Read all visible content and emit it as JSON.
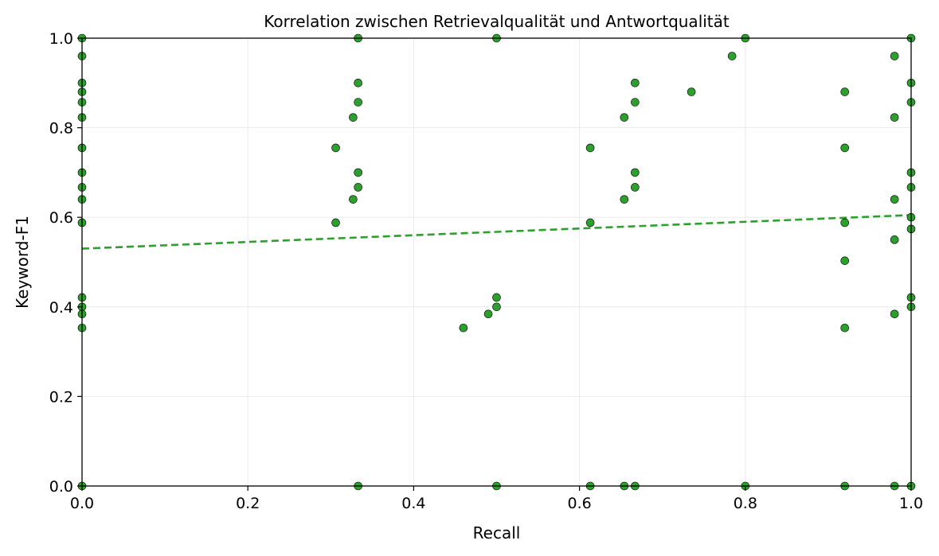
{
  "chart_data": {
    "type": "scatter",
    "title": "Korrelation zwischen Retrievalqualität und Antwortqualität",
    "xlabel": "Recall",
    "ylabel": "Keyword-F1",
    "xlim": [
      0,
      1
    ],
    "ylim": [
      0,
      1
    ],
    "x_ticks": [
      "0.0",
      "0.2",
      "0.4",
      "0.6",
      "0.8",
      "1.0"
    ],
    "y_ticks": [
      "0.0",
      "0.2",
      "0.4",
      "0.6",
      "0.8",
      "1.0"
    ],
    "grid": true,
    "colors": {
      "points": "#2ca02c",
      "point_edge": "#000000",
      "trend": "#2ca02c",
      "grid": "#e6e6e6"
    },
    "series": [
      {
        "points": [
          [
            0,
            1.0
          ],
          [
            0,
            0.96
          ],
          [
            0,
            0.9
          ],
          [
            0,
            0.88
          ],
          [
            0,
            0.857
          ],
          [
            0,
            0.823
          ],
          [
            0,
            0.755
          ],
          [
            0,
            0.7
          ],
          [
            0,
            0.667
          ],
          [
            0,
            0.64
          ],
          [
            0,
            0.588
          ],
          [
            0,
            0.421
          ],
          [
            0,
            0.4
          ],
          [
            0,
            0.384
          ],
          [
            0,
            0.353
          ],
          [
            0,
            0.0
          ],
          [
            0.306,
            0.755
          ],
          [
            0.306,
            0.588
          ],
          [
            0.327,
            0.823
          ],
          [
            0.327,
            0.64
          ],
          [
            0.333,
            1.0
          ],
          [
            0.333,
            0.9
          ],
          [
            0.333,
            0.857
          ],
          [
            0.333,
            0.7
          ],
          [
            0.333,
            0.667
          ],
          [
            0.333,
            0.0
          ],
          [
            0.46,
            0.353
          ],
          [
            0.49,
            0.384
          ],
          [
            0.5,
            1.0
          ],
          [
            0.5,
            0.421
          ],
          [
            0.5,
            0.4
          ],
          [
            0.5,
            0.0
          ],
          [
            0.613,
            0.755
          ],
          [
            0.613,
            0.588
          ],
          [
            0.613,
            0.0
          ],
          [
            0.654,
            0.823
          ],
          [
            0.654,
            0.64
          ],
          [
            0.654,
            0.0
          ],
          [
            0.667,
            0.9
          ],
          [
            0.667,
            0.857
          ],
          [
            0.667,
            0.7
          ],
          [
            0.667,
            0.667
          ],
          [
            0.667,
            0.0
          ],
          [
            0.735,
            0.88
          ],
          [
            0.784,
            0.96
          ],
          [
            0.8,
            1.0
          ],
          [
            0.8,
            0.0
          ],
          [
            0.92,
            0.88
          ],
          [
            0.92,
            0.755
          ],
          [
            0.92,
            0.588
          ],
          [
            0.92,
            0.503
          ],
          [
            0.92,
            0.353
          ],
          [
            0.92,
            0.0
          ],
          [
            0.98,
            0.96
          ],
          [
            0.98,
            0.823
          ],
          [
            0.98,
            0.64
          ],
          [
            0.98,
            0.55
          ],
          [
            0.98,
            0.384
          ],
          [
            0.98,
            0.0
          ],
          [
            1.0,
            1.0
          ],
          [
            1.0,
            0.9
          ],
          [
            1.0,
            0.857
          ],
          [
            1.0,
            0.7
          ],
          [
            1.0,
            0.667
          ],
          [
            1.0,
            0.6
          ],
          [
            1.0,
            0.574
          ],
          [
            1.0,
            0.421
          ],
          [
            1.0,
            0.4
          ],
          [
            1.0,
            0.0
          ]
        ]
      }
    ],
    "trend_line": {
      "style": "dashed",
      "x": [
        0,
        1
      ],
      "y": [
        0.53,
        0.605
      ]
    }
  }
}
